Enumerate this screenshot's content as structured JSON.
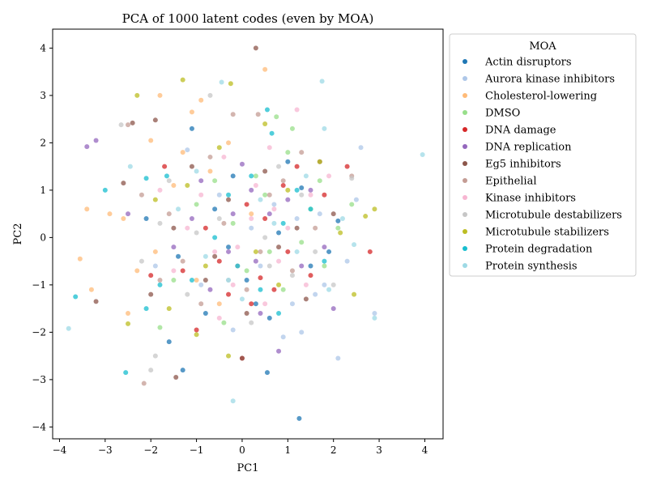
{
  "chart_data": {
    "type": "scatter",
    "title": "PCA of 1000 latent codes (even by MOA)",
    "xlabel": "PC1",
    "ylabel": "PC2",
    "xlim": [
      -4.15,
      4.4
    ],
    "ylim": [
      -4.25,
      4.4
    ],
    "xticks": [
      -4,
      -3,
      -2,
      -1,
      0,
      1,
      2,
      3,
      4
    ],
    "yticks": [
      -4,
      -3,
      -2,
      -1,
      0,
      1,
      2,
      3,
      4
    ],
    "grid": false,
    "legend": {
      "title": "MOA",
      "placement": "outside right"
    },
    "point_alpha": 0.75,
    "series": [
      {
        "name": "Actin disruptors",
        "color": "#1f77b4",
        "points": [
          [
            1.25,
            -3.82
          ],
          [
            -1.1,
            2.3
          ],
          [
            0.55,
            -2.85
          ],
          [
            -1.3,
            -2.8
          ],
          [
            1.9,
            -0.3
          ],
          [
            0.1,
            -0.9
          ],
          [
            -0.8,
            -1.6
          ],
          [
            0.8,
            0.1
          ],
          [
            1.3,
            1.05
          ],
          [
            -0.2,
            1.3
          ],
          [
            0.3,
            -1.4
          ],
          [
            -1.6,
            -2.2
          ],
          [
            2.1,
            0.35
          ],
          [
            -2.1,
            0.4
          ],
          [
            -0.6,
            0.6
          ],
          [
            0.6,
            -1.7
          ],
          [
            1.5,
            -0.6
          ],
          [
            -0.3,
            -0.2
          ],
          [
            1.0,
            1.6
          ],
          [
            -1.4,
            -0.4
          ]
        ]
      },
      {
        "name": "Aurora kinase inhibitors",
        "color": "#aec7e8",
        "points": [
          [
            2.1,
            -2.55
          ],
          [
            1.3,
            -2.0
          ],
          [
            0.9,
            -2.1
          ],
          [
            -0.2,
            -1.95
          ],
          [
            2.5,
            0.8
          ],
          [
            1.6,
            -1.2
          ],
          [
            1.7,
            0.5
          ],
          [
            2.9,
            -1.6
          ],
          [
            -0.5,
            0.9
          ],
          [
            0.4,
            -0.6
          ],
          [
            1.2,
            0.4
          ],
          [
            -1.2,
            1.85
          ],
          [
            1.8,
            -1.0
          ],
          [
            0.7,
            0.7
          ],
          [
            2.3,
            -0.5
          ],
          [
            1.1,
            -1.4
          ],
          [
            -0.9,
            -1.0
          ],
          [
            2.6,
            1.9
          ],
          [
            0.2,
            0.2
          ],
          [
            -1.9,
            -0.6
          ]
        ]
      },
      {
        "name": "Cholesterol-lowering",
        "color": "#ffbb78",
        "points": [
          [
            0.5,
            3.55
          ],
          [
            -1.8,
            3.0
          ],
          [
            -3.55,
            -0.45
          ],
          [
            -3.4,
            0.6
          ],
          [
            -2.6,
            0.4
          ],
          [
            -1.1,
            2.65
          ],
          [
            -0.9,
            2.9
          ],
          [
            -1.5,
            1.1
          ],
          [
            0.2,
            0.5
          ],
          [
            -2.3,
            -0.7
          ],
          [
            -0.7,
            1.4
          ],
          [
            -2.5,
            -1.6
          ],
          [
            -1.9,
            -0.3
          ],
          [
            -1.0,
            -0.9
          ],
          [
            -0.3,
            2.0
          ],
          [
            -2.0,
            2.05
          ],
          [
            -3.3,
            -1.1
          ],
          [
            -1.3,
            1.8
          ],
          [
            -0.5,
            -1.4
          ],
          [
            -2.9,
            0.5
          ]
        ]
      },
      {
        "name": "DMSO",
        "color": "#98df8a",
        "points": [
          [
            0.75,
            2.55
          ],
          [
            1.0,
            1.8
          ],
          [
            1.7,
            1.2
          ],
          [
            2.1,
            0.2
          ],
          [
            -0.6,
            1.2
          ],
          [
            0.3,
            1.3
          ],
          [
            1.3,
            -0.1
          ],
          [
            0.5,
            0.9
          ],
          [
            -1.0,
            0.7
          ],
          [
            2.4,
            0.7
          ],
          [
            0.1,
            -0.7
          ],
          [
            -1.5,
            -0.9
          ],
          [
            1.8,
            -0.6
          ],
          [
            -0.2,
            0.3
          ],
          [
            0.9,
            -1.1
          ],
          [
            1.5,
            0.6
          ],
          [
            -1.8,
            -1.9
          ],
          [
            0.6,
            -0.3
          ],
          [
            -0.4,
            -1.8
          ],
          [
            1.1,
            2.3
          ]
        ]
      },
      {
        "name": "DNA damage",
        "color": "#d62728",
        "points": [
          [
            0.0,
            -2.55
          ],
          [
            -1.0,
            -1.95
          ],
          [
            0.4,
            -0.85
          ],
          [
            1.8,
            0.9
          ],
          [
            2.8,
            -0.3
          ],
          [
            0.2,
            -1.4
          ],
          [
            -0.5,
            -0.5
          ],
          [
            1.2,
            1.5
          ],
          [
            -1.3,
            -0.7
          ],
          [
            0.7,
            -1.1
          ],
          [
            2.3,
            1.5
          ],
          [
            -0.8,
            0.2
          ],
          [
            0.9,
            1.1
          ],
          [
            -0.3,
            -1.2
          ],
          [
            1.5,
            -0.8
          ],
          [
            -1.7,
            1.5
          ],
          [
            0.1,
            0.7
          ],
          [
            1.0,
            -0.3
          ],
          [
            -2.0,
            -0.8
          ],
          [
            0.5,
            0.4
          ]
        ]
      },
      {
        "name": "DNA replication",
        "color": "#9467bd",
        "points": [
          [
            -3.4,
            1.92
          ],
          [
            -3.2,
            2.05
          ],
          [
            -2.5,
            0.5
          ],
          [
            0.0,
            1.55
          ],
          [
            1.3,
            -0.6
          ],
          [
            -0.3,
            -0.3
          ],
          [
            0.6,
            0.5
          ],
          [
            -1.1,
            0.4
          ],
          [
            0.8,
            -2.4
          ],
          [
            1.8,
            -0.2
          ],
          [
            -0.7,
            -1.1
          ],
          [
            0.2,
            1.0
          ],
          [
            1.0,
            0.8
          ],
          [
            -1.5,
            -0.2
          ],
          [
            0.4,
            -1.6
          ],
          [
            1.5,
            1.0
          ],
          [
            -0.2,
            0.5
          ],
          [
            2.0,
            -1.5
          ],
          [
            -0.9,
            1.2
          ],
          [
            0.3,
            -0.5
          ]
        ]
      },
      {
        "name": "Eg5 inhibitors",
        "color": "#8c564b",
        "points": [
          [
            0.3,
            4.0
          ],
          [
            -1.9,
            2.48
          ],
          [
            -2.4,
            2.42
          ],
          [
            -1.45,
            -2.95
          ],
          [
            0.0,
            -2.55
          ],
          [
            -2.6,
            1.15
          ],
          [
            -0.8,
            -0.9
          ],
          [
            0.5,
            1.4
          ],
          [
            1.2,
            0.2
          ],
          [
            -1.5,
            0.2
          ],
          [
            0.8,
            -0.2
          ],
          [
            -0.3,
            0.8
          ],
          [
            1.4,
            -1.3
          ],
          [
            -2.0,
            -1.2
          ],
          [
            0.1,
            -1.6
          ],
          [
            -1.1,
            1.5
          ],
          [
            2.0,
            0.5
          ],
          [
            -0.6,
            -0.4
          ],
          [
            1.7,
            1.6
          ],
          [
            -3.2,
            -1.35
          ]
        ]
      },
      {
        "name": "Epithelial",
        "color": "#c49c94",
        "points": [
          [
            -2.15,
            -3.08
          ],
          [
            -2.5,
            2.38
          ],
          [
            -0.2,
            2.6
          ],
          [
            0.35,
            2.6
          ],
          [
            -1.6,
            0.5
          ],
          [
            -0.4,
            0.3
          ],
          [
            0.9,
            1.2
          ],
          [
            -1.3,
            -0.5
          ],
          [
            0.4,
            -0.3
          ],
          [
            1.6,
            0.2
          ],
          [
            -0.7,
            1.7
          ],
          [
            0.1,
            -1.1
          ],
          [
            -2.2,
            0.9
          ],
          [
            1.1,
            -0.7
          ],
          [
            -0.9,
            -1.4
          ],
          [
            0.6,
            0.9
          ],
          [
            -1.8,
            -0.9
          ],
          [
            1.3,
            1.8
          ],
          [
            -0.1,
            -0.6
          ],
          [
            2.4,
            1.3
          ]
        ]
      },
      {
        "name": "Kinase inhibitors",
        "color": "#f7b6d2",
        "points": [
          [
            1.2,
            2.7
          ],
          [
            0.6,
            1.9
          ],
          [
            -0.4,
            1.7
          ],
          [
            1.5,
            0.9
          ],
          [
            -0.6,
            -0.3
          ],
          [
            0.2,
            0.4
          ],
          [
            0.8,
            -0.5
          ],
          [
            -1.2,
            0.2
          ],
          [
            1.9,
            1.3
          ],
          [
            -0.2,
            -1.0
          ],
          [
            0.5,
            -1.4
          ],
          [
            -1.5,
            -0.7
          ],
          [
            1.0,
            0.2
          ],
          [
            -0.9,
            0.9
          ],
          [
            0.3,
            1.1
          ],
          [
            -0.1,
            -0.2
          ],
          [
            1.4,
            -1.0
          ],
          [
            -1.8,
            1.0
          ],
          [
            0.7,
            0.6
          ],
          [
            -0.5,
            -1.7
          ]
        ]
      },
      {
        "name": "Microtubule destabilizers",
        "color": "#c7c7c7",
        "points": [
          [
            -2.65,
            2.38
          ],
          [
            -1.9,
            -2.5
          ],
          [
            -2.0,
            -2.8
          ],
          [
            -0.7,
            3.0
          ],
          [
            2.4,
            1.25
          ],
          [
            -1.6,
            1.2
          ],
          [
            0.5,
            0.0
          ],
          [
            -0.3,
            -0.9
          ],
          [
            1.1,
            -0.8
          ],
          [
            -1.2,
            -1.2
          ],
          [
            0.8,
            1.5
          ],
          [
            -2.2,
            -0.5
          ],
          [
            1.6,
            -0.3
          ],
          [
            -0.5,
            0.4
          ],
          [
            0.2,
            -1.8
          ],
          [
            -1.0,
            0.1
          ],
          [
            1.3,
            0.9
          ],
          [
            -1.8,
            0.3
          ],
          [
            0.6,
            -0.6
          ],
          [
            2.0,
            -1.0
          ]
        ]
      },
      {
        "name": "Microtubule stabilizers",
        "color": "#bcbd22",
        "points": [
          [
            -1.3,
            3.33
          ],
          [
            -2.3,
            3.0
          ],
          [
            -0.25,
            3.25
          ],
          [
            -1.0,
            -2.05
          ],
          [
            -0.3,
            -2.5
          ],
          [
            -2.5,
            -1.82
          ],
          [
            2.9,
            0.6
          ],
          [
            2.7,
            0.45
          ],
          [
            2.45,
            -1.2
          ],
          [
            2.15,
            0.1
          ],
          [
            -1.9,
            0.8
          ],
          [
            -0.5,
            1.9
          ],
          [
            0.8,
            -1.0
          ],
          [
            1.0,
            1.0
          ],
          [
            -1.2,
            1.1
          ],
          [
            0.3,
            -0.3
          ],
          [
            1.7,
            1.6
          ],
          [
            -0.8,
            -0.6
          ],
          [
            0.5,
            2.4
          ],
          [
            -1.6,
            -1.5
          ]
        ]
      },
      {
        "name": "Protein degradation",
        "color": "#17becf",
        "points": [
          [
            -3.65,
            -1.25
          ],
          [
            -3.0,
            1.0
          ],
          [
            -2.55,
            -2.85
          ],
          [
            -2.1,
            1.25
          ],
          [
            -1.65,
            1.3
          ],
          [
            0.55,
            2.7
          ],
          [
            0.65,
            2.2
          ],
          [
            -1.8,
            -1.0
          ],
          [
            -0.1,
            -0.6
          ],
          [
            0.9,
            0.3
          ],
          [
            -1.1,
            -0.9
          ],
          [
            1.5,
            0.6
          ],
          [
            0.2,
            1.3
          ],
          [
            -0.6,
            0.0
          ],
          [
            1.2,
            1.0
          ],
          [
            -2.1,
            -1.5
          ],
          [
            0.8,
            -1.6
          ],
          [
            -0.3,
            0.9
          ],
          [
            0.4,
            -1.1
          ],
          [
            1.8,
            -0.5
          ]
        ]
      },
      {
        "name": "Protein synthesis",
        "color": "#9edae5",
        "points": [
          [
            -3.8,
            -1.92
          ],
          [
            -0.2,
            -3.45
          ],
          [
            1.75,
            3.3
          ],
          [
            -0.45,
            3.28
          ],
          [
            3.95,
            1.75
          ],
          [
            1.8,
            2.3
          ],
          [
            2.9,
            -1.7
          ],
          [
            2.45,
            -0.15
          ],
          [
            1.9,
            -1.1
          ],
          [
            -2.45,
            1.5
          ],
          [
            0.4,
            0.8
          ],
          [
            -0.8,
            -0.4
          ],
          [
            1.2,
            -0.3
          ],
          [
            -1.4,
            0.6
          ],
          [
            0.0,
            -1.3
          ],
          [
            0.7,
            0.3
          ],
          [
            -1.0,
            1.4
          ],
          [
            1.4,
            1.3
          ],
          [
            -0.3,
            -0.9
          ],
          [
            2.2,
            0.4
          ]
        ]
      }
    ]
  }
}
